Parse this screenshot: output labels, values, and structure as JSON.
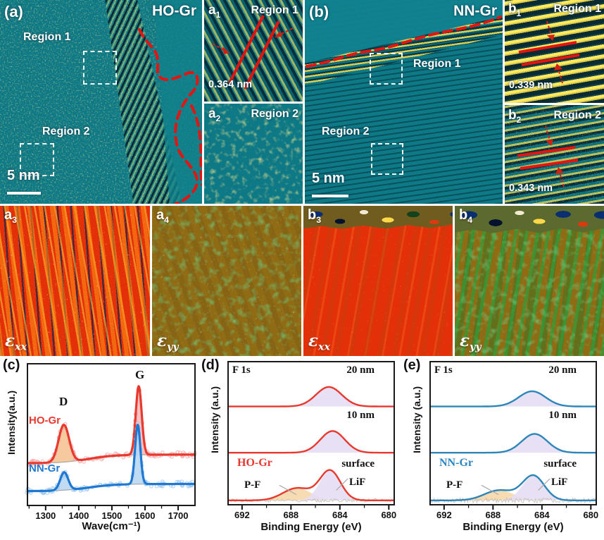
{
  "panels": {
    "a": {
      "label": "(a)",
      "sample": "HO-Gr",
      "region1": "Region 1",
      "region2": "Region 2",
      "scalebar": "5 nm"
    },
    "a1": {
      "label": "a",
      "sub": "1",
      "region": "Region 1",
      "spacing": "0.364 nm"
    },
    "a2": {
      "label": "a",
      "sub": "2",
      "region": "Region 2"
    },
    "b": {
      "label": "(b)",
      "sample": "NN-Gr",
      "region1": "Region 1",
      "region2": "Region 2",
      "scalebar": "5 nm"
    },
    "b1": {
      "label": "b",
      "sub": "1",
      "region": "Region 1",
      "spacing": "0.339 nm"
    },
    "b2": {
      "label": "b",
      "sub": "2",
      "region": "Region 2",
      "spacing": "0.343 nm"
    },
    "a3": {
      "label": "a",
      "sub": "3",
      "component": "ε",
      "component_sub": "xx"
    },
    "a4": {
      "label": "a",
      "sub": "4",
      "component": "ε",
      "component_sub": "yy"
    },
    "b3": {
      "label": "b",
      "sub": "3",
      "component": "ε",
      "component_sub": "xx"
    },
    "b4": {
      "label": "b",
      "sub": "4",
      "component": "ε",
      "component_sub": "yy"
    }
  },
  "colors": {
    "tem_teal": "#0d7a87",
    "tem_yellow": "#ffe34d",
    "red_marker": "#e41410",
    "strain_red": "#e43009",
    "strain_olive": "#8f6b14",
    "strain_green": "#2f9e3a"
  },
  "chart_data": [
    {
      "id": "c",
      "type": "line",
      "panel_label": "(c)",
      "xlabel": "Wave(cm⁻¹)",
      "ylabel": "Intensity(a.u.)",
      "xlim": [
        1243,
        1753
      ],
      "xticks": [
        1300,
        1400,
        1500,
        1600,
        1700
      ],
      "minor_tick_step": 50,
      "ylim": [
        0,
        1
      ],
      "grid": false,
      "peak_labels": [
        {
          "text": "D",
          "x": 1355
        },
        {
          "text": "G",
          "x": 1580
        }
      ],
      "series": [
        {
          "name": "HO-Gr",
          "color": "#e8392f",
          "scatter_color": "#f4a7a7",
          "offset": 0.3,
          "background_rise": 0.06,
          "peaks": [
            {
              "band": "D",
              "center": 1355,
              "height": 0.26,
              "sigma": 16,
              "fill": "#f6c496"
            },
            {
              "band": "G",
              "center": 1581,
              "height": 0.48,
              "sigma": 9,
              "fill": "#f6bdbd"
            }
          ]
        },
        {
          "name": "NN-Gr",
          "color": "#1f78d1",
          "scatter_color": "#9fc8ee",
          "offset": 0.105,
          "background_rise": 0.05,
          "peaks": [
            {
              "band": "D",
              "center": 1356,
              "height": 0.125,
              "sigma": 12,
              "fill": "#bcd8f2"
            },
            {
              "band": "G",
              "center": 1578,
              "height": 0.415,
              "sigma": 8,
              "fill": "#bcd8f2"
            }
          ]
        }
      ]
    },
    {
      "id": "d",
      "type": "line",
      "panel_label": "(d)",
      "core_level": "F 1s",
      "sample": "HO-Gr",
      "sample_color": "#e8392f",
      "line_color": "#e8392f",
      "xlabel": "Binding Energy (eV)",
      "ylabel": "Intensity (a.u.)",
      "xlim": [
        693.2,
        679.5
      ],
      "xticks": [
        692,
        688,
        684,
        680
      ],
      "minor_tick_step": 2,
      "spectra": [
        {
          "label": "20 nm",
          "offset": 0.685,
          "peaks": [
            {
              "name": "LiF",
              "center": 684.9,
              "height": 0.135,
              "sigma": 1.05,
              "fill": "#e7def4"
            }
          ]
        },
        {
          "label": "10 nm",
          "offset": 0.365,
          "peaks": [
            {
              "name": "LiF",
              "center": 684.6,
              "height": 0.15,
              "sigma": 1.0,
              "fill": "#e7def4"
            }
          ]
        },
        {
          "label": "surface",
          "offset": 0.035,
          "noise": 0.012,
          "peaks": [
            {
              "name": "P-F",
              "center": 687.5,
              "height": 0.085,
              "sigma": 1.15,
              "fill": "#f7d9ae"
            },
            {
              "name": "LiF",
              "center": 684.8,
              "height": 0.205,
              "sigma": 0.85,
              "fill": "#e7def4"
            }
          ]
        }
      ],
      "annotations": {
        "pf": "P-F",
        "lif": "LiF"
      }
    },
    {
      "id": "e",
      "type": "line",
      "panel_label": "(e)",
      "core_level": "F 1s",
      "sample": "NN-Gr",
      "sample_color": "#2b85c2",
      "line_color": "#2e86b8",
      "xlabel": "Binding Energy (eV)",
      "ylabel": "Intensity (a.u.)",
      "xlim": [
        693.2,
        679.5
      ],
      "xticks": [
        692,
        688,
        684,
        680
      ],
      "minor_tick_step": 2,
      "spectra": [
        {
          "label": "20 nm",
          "offset": 0.685,
          "peaks": [
            {
              "name": "LiF",
              "center": 684.8,
              "height": 0.105,
              "sigma": 1.1,
              "fill": "#e7def4"
            }
          ]
        },
        {
          "label": "10 nm",
          "offset": 0.365,
          "peaks": [
            {
              "name": "LiF",
              "center": 684.6,
              "height": 0.13,
              "sigma": 1.05,
              "fill": "#e7def4"
            }
          ]
        },
        {
          "label": "surface",
          "offset": 0.035,
          "noise": 0.016,
          "peaks": [
            {
              "name": "P-F",
              "center": 687.5,
              "height": 0.07,
              "sigma": 1.2,
              "fill": "#f7d9ae"
            },
            {
              "name": "LiF",
              "center": 684.7,
              "height": 0.17,
              "sigma": 0.9,
              "fill": "#e7def4"
            }
          ]
        }
      ],
      "annotations": {
        "pf": "P-F",
        "lif": "LiF"
      }
    }
  ]
}
